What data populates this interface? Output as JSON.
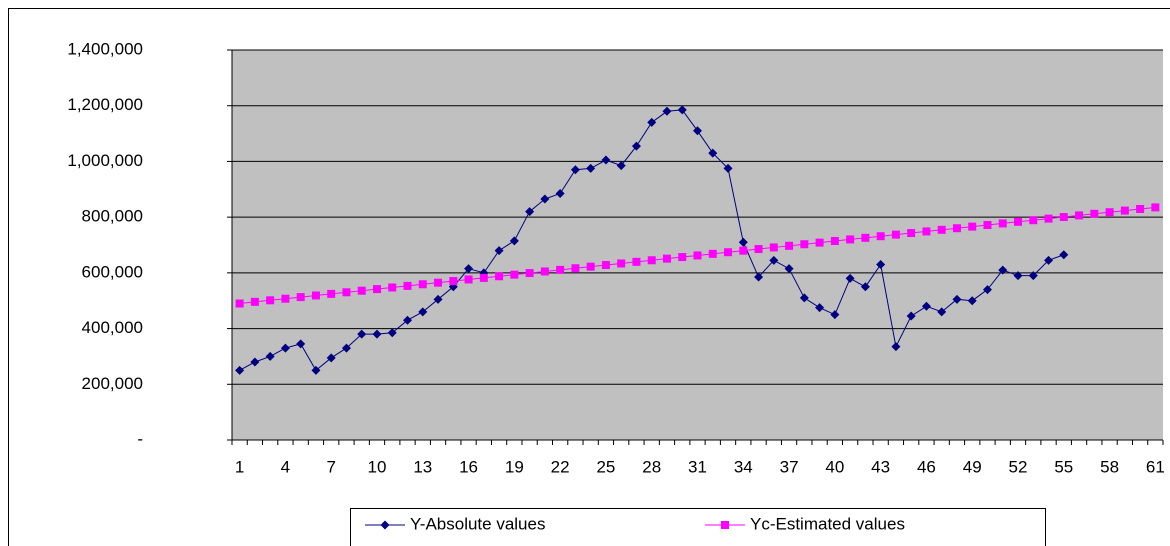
{
  "chart_data": {
    "type": "line",
    "categories": [
      1,
      null,
      null,
      4,
      null,
      null,
      7,
      null,
      null,
      10,
      null,
      null,
      13,
      null,
      null,
      16,
      null,
      null,
      19,
      null,
      null,
      22,
      null,
      null,
      25,
      null,
      null,
      28,
      null,
      null,
      31,
      null,
      null,
      34,
      null,
      null,
      37,
      null,
      null,
      40,
      null,
      null,
      43,
      null,
      null,
      46,
      null,
      null,
      49,
      null,
      null,
      52,
      null,
      null,
      55,
      null,
      null,
      58,
      null,
      null,
      61
    ],
    "series": [
      {
        "name": "Y-Absolute values",
        "color": "#000080",
        "marker": "diamond",
        "values": [
          250000,
          280000,
          300000,
          330000,
          345000,
          250000,
          295000,
          330000,
          380000,
          380000,
          385000,
          430000,
          460000,
          505000,
          550000,
          615000,
          600000,
          680000,
          715000,
          820000,
          865000,
          885000,
          970000,
          975000,
          1005000,
          985000,
          1055000,
          1140000,
          1180000,
          1185000,
          1110000,
          1030000,
          975000,
          710000,
          585000,
          645000,
          615000,
          510000,
          475000,
          450000,
          580000,
          550000,
          630000,
          335000,
          445000,
          480000,
          460000,
          505000,
          500000,
          540000,
          610000,
          590000,
          590000,
          645000,
          665000,
          null,
          null,
          null,
          null,
          null,
          null
        ]
      },
      {
        "name": "Yc-Estimated values",
        "color": "#ff00ff",
        "marker": "square",
        "values": [
          490000,
          495750,
          501500,
          507250,
          513000,
          518750,
          524500,
          530250,
          536000,
          541750,
          547500,
          553250,
          559000,
          564750,
          570500,
          576250,
          582000,
          587750,
          593500,
          599250,
          605000,
          610750,
          616500,
          622250,
          628000,
          633750,
          639500,
          645250,
          651000,
          656750,
          662500,
          668250,
          674000,
          679750,
          685500,
          691250,
          697000,
          702750,
          708500,
          714250,
          720000,
          725750,
          731500,
          737250,
          743000,
          748750,
          754500,
          760250,
          766000,
          771750,
          777500,
          783250,
          789000,
          794750,
          800500,
          806250,
          812000,
          817750,
          823500,
          829250,
          835000
        ]
      }
    ],
    "ylim": [
      0,
      1400000
    ],
    "yticks": [
      {
        "value": 0,
        "label": "-"
      },
      {
        "value": 200000,
        "label": "200,000"
      },
      {
        "value": 400000,
        "label": "400,000"
      },
      {
        "value": 600000,
        "label": "600,000"
      },
      {
        "value": 800000,
        "label": "800,000"
      },
      {
        "value": 1000000,
        "label": "1,000,000"
      },
      {
        "value": 1200000,
        "label": "1,200,000"
      },
      {
        "value": 1400000,
        "label": "1,400,000"
      }
    ],
    "grid": true,
    "plot_background": "#c0c0c0",
    "legend": "bottom"
  }
}
